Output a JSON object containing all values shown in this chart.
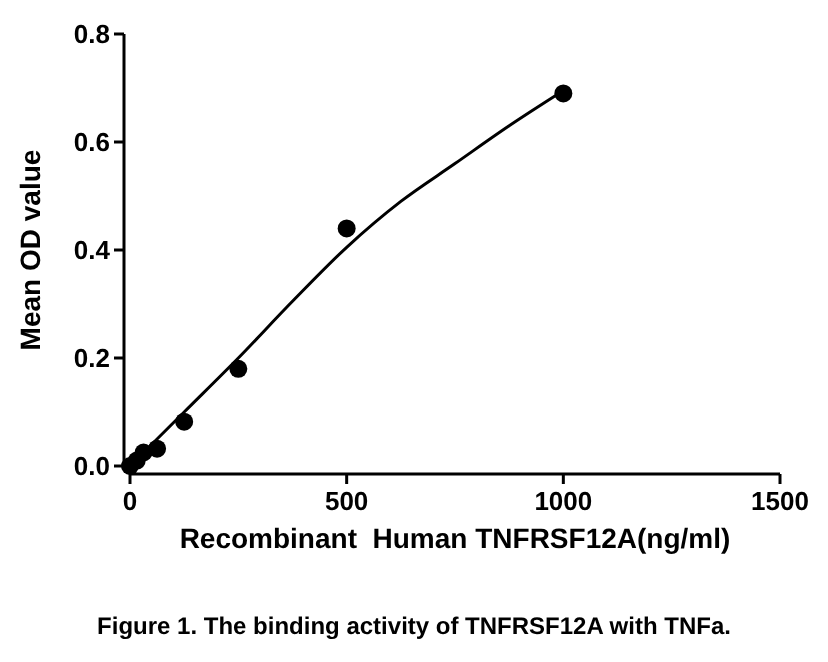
{
  "chart_data": {
    "type": "scatter",
    "xlabel": "Recombinant  Human TNFRSF12A(ng/ml)",
    "ylabel": "Mean OD value",
    "xlim": [
      0,
      1500
    ],
    "xticks": [
      0,
      500,
      1000,
      1500
    ],
    "ylim": [
      0,
      0.8
    ],
    "yticks": [
      {
        "value": 0,
        "label": "0.0"
      },
      0.2,
      0.4,
      0.6,
      0.8
    ],
    "series": [
      {
        "color": "#000000",
        "marker": "circle",
        "x": [
          0,
          15.6,
          31.25,
          62.5,
          125,
          250,
          500,
          1000
        ],
        "values": [
          0,
          0.01,
          0.025,
          0.032,
          0.082,
          0.18,
          0.44,
          0.69
        ]
      },
      {
        "type": "line",
        "color": "#000000",
        "x": [
          0,
          62.5,
          125,
          250,
          375,
          500,
          625,
          750,
          875,
          1000
        ],
        "values": [
          0,
          0.05,
          0.1,
          0.2,
          0.305,
          0.405,
          0.49,
          0.56,
          0.63,
          0.695
        ]
      }
    ],
    "annotations": [
      "Figure 1. The binding activity of TNFRSF12A with TNFa."
    ]
  }
}
